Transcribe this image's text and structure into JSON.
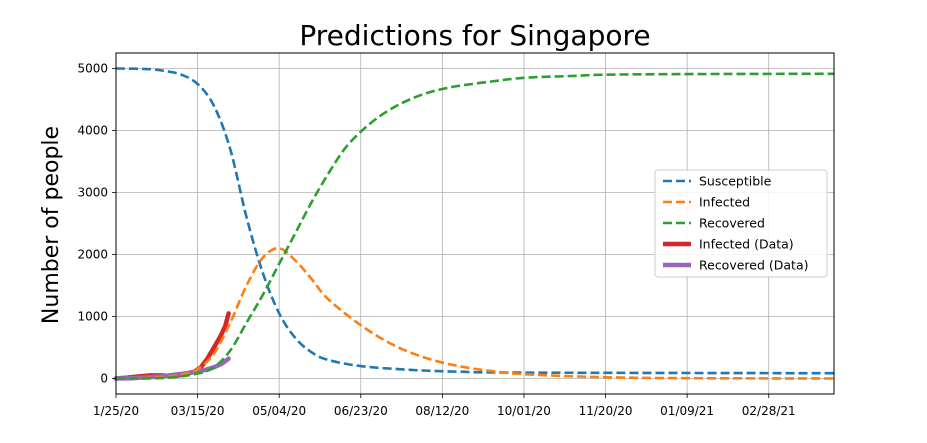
{
  "chart_data": {
    "type": "line",
    "title": "Predictions for Singapore",
    "xlabel": "",
    "ylabel": "Number of people",
    "xlim": [
      "2020-01-25",
      "2021-04-09"
    ],
    "ylim": [
      -250,
      5250
    ],
    "grid": true,
    "legend_position": "center-right",
    "x_ticks": [
      "2020-01-25",
      "2020-03-15",
      "2020-05-04",
      "2020-06-23",
      "2020-08-12",
      "2020-10-01",
      "2020-11-20",
      "2021-01-09",
      "2021-02-28"
    ],
    "x_tick_labels": [
      "1/25/20",
      "03/15/20",
      "05/04/20",
      "06/23/20",
      "08/12/20",
      "10/01/20",
      "11/20/20",
      "01/09/21",
      "02/28/21"
    ],
    "y_ticks": [
      0,
      1000,
      2000,
      3000,
      4000,
      5000
    ],
    "y_tick_labels": [
      "0",
      "1000",
      "2000",
      "3000",
      "4000",
      "5000"
    ],
    "series": [
      {
        "name": "Susceptible",
        "style": "dashed",
        "color": "#1f77b4",
        "x": [
          "2020-01-25",
          "2020-02-14",
          "2020-02-24",
          "2020-03-05",
          "2020-03-15",
          "2020-03-25",
          "2020-04-04",
          "2020-04-14",
          "2020-04-24",
          "2020-05-04",
          "2020-05-14",
          "2020-05-24",
          "2020-06-03",
          "2020-06-23",
          "2020-07-23",
          "2020-08-22",
          "2020-10-01",
          "2021-04-09"
        ],
        "values": [
          5000,
          4990,
          4960,
          4900,
          4750,
          4400,
          3700,
          2600,
          1700,
          1050,
          650,
          420,
          300,
          200,
          140,
          110,
          95,
          85
        ]
      },
      {
        "name": "Infected",
        "style": "dashed",
        "color": "#ff7f0e",
        "x": [
          "2020-01-25",
          "2020-02-14",
          "2020-02-24",
          "2020-03-05",
          "2020-03-15",
          "2020-03-25",
          "2020-04-04",
          "2020-04-14",
          "2020-04-24",
          "2020-05-04",
          "2020-05-14",
          "2020-05-24",
          "2020-06-03",
          "2020-06-23",
          "2020-07-13",
          "2020-08-02",
          "2020-08-22",
          "2020-09-11",
          "2020-10-01",
          "2020-10-31",
          "2020-11-30",
          "2021-01-09",
          "2021-04-09"
        ],
        "values": [
          0,
          10,
          30,
          60,
          150,
          400,
          900,
          1500,
          1950,
          2100,
          1900,
          1600,
          1280,
          860,
          540,
          330,
          200,
          120,
          70,
          35,
          15,
          5,
          0
        ]
      },
      {
        "name": "Recovered",
        "style": "dashed",
        "color": "#2ca02c",
        "x": [
          "2020-01-25",
          "2020-02-24",
          "2020-03-15",
          "2020-03-25",
          "2020-04-04",
          "2020-04-14",
          "2020-04-24",
          "2020-05-04",
          "2020-05-14",
          "2020-05-24",
          "2020-06-03",
          "2020-06-13",
          "2020-06-23",
          "2020-07-03",
          "2020-07-13",
          "2020-07-23",
          "2020-08-02",
          "2020-08-12",
          "2020-08-22",
          "2020-09-11",
          "2020-10-01",
          "2020-10-31",
          "2020-11-20",
          "2021-01-09",
          "2021-04-09"
        ],
        "values": [
          0,
          10,
          80,
          180,
          450,
          900,
          1350,
          1850,
          2350,
          2850,
          3300,
          3700,
          3980,
          4200,
          4370,
          4500,
          4600,
          4670,
          4720,
          4790,
          4850,
          4880,
          4900,
          4910,
          4915
        ]
      },
      {
        "name": "Infected (Data)",
        "style": "solid",
        "color": "#d62728",
        "x": [
          "2020-01-25",
          "2020-02-01",
          "2020-02-08",
          "2020-02-15",
          "2020-02-22",
          "2020-03-01",
          "2020-03-08",
          "2020-03-13",
          "2020-03-17",
          "2020-03-21",
          "2020-03-25",
          "2020-03-29",
          "2020-04-01",
          "2020-04-03"
        ],
        "values": [
          0,
          15,
          35,
          50,
          50,
          35,
          80,
          110,
          180,
          320,
          500,
          680,
          850,
          1050
        ]
      },
      {
        "name": "Recovered (Data)",
        "style": "solid",
        "color": "#9467bd",
        "x": [
          "2020-01-25",
          "2020-02-04",
          "2020-02-14",
          "2020-02-24",
          "2020-03-04",
          "2020-03-10",
          "2020-03-15",
          "2020-03-20",
          "2020-03-25",
          "2020-03-30",
          "2020-04-03"
        ],
        "values": [
          0,
          5,
          20,
          40,
          70,
          90,
          110,
          140,
          180,
          240,
          320
        ]
      }
    ]
  }
}
